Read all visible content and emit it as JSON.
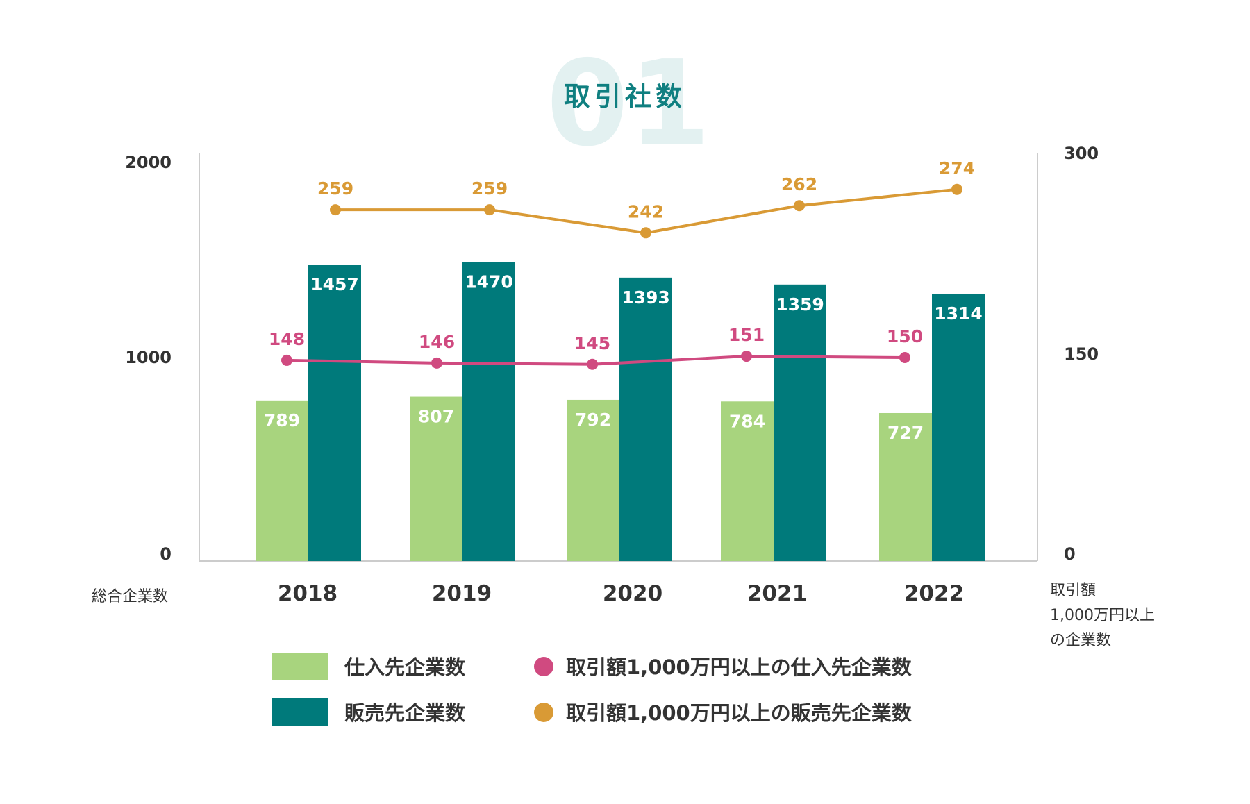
{
  "chart_data": {
    "type": "bar+line",
    "badge_number": "01",
    "title": "取引社数",
    "categories": [
      "2018",
      "2019",
      "2020",
      "2021",
      "2022"
    ],
    "left_axis": {
      "label": "総合企業数",
      "ticks": [
        "2000",
        "1000",
        "0"
      ],
      "range": [
        0,
        2000
      ]
    },
    "right_axis": {
      "label_lines": [
        "取引額",
        "1,000万円以上",
        "の企業数"
      ],
      "ticks": [
        "300",
        "150",
        "0"
      ],
      "range": [
        0,
        300
      ]
    },
    "bar_series": [
      {
        "name": "仕入先企業数",
        "color": "#a8d47e",
        "values": [
          789,
          807,
          792,
          784,
          727
        ]
      },
      {
        "name": "販売先企業数",
        "color": "#007a7b",
        "values": [
          1457,
          1470,
          1393,
          1359,
          1314
        ]
      }
    ],
    "line_series": [
      {
        "name": "取引額1,000万円以上の仕入先企業数",
        "color": "#d04a80",
        "values": [
          148,
          146,
          145,
          151,
          150
        ]
      },
      {
        "name": "取引額1,000万円以上の販売先企業数",
        "color": "#d99a35",
        "values": [
          259,
          259,
          242,
          262,
          274
        ]
      }
    ],
    "colors": {
      "title": "#0f7f80",
      "badge": "#e3f1f1",
      "axis_text": "#333333",
      "axis_line": "#cccccc"
    }
  }
}
